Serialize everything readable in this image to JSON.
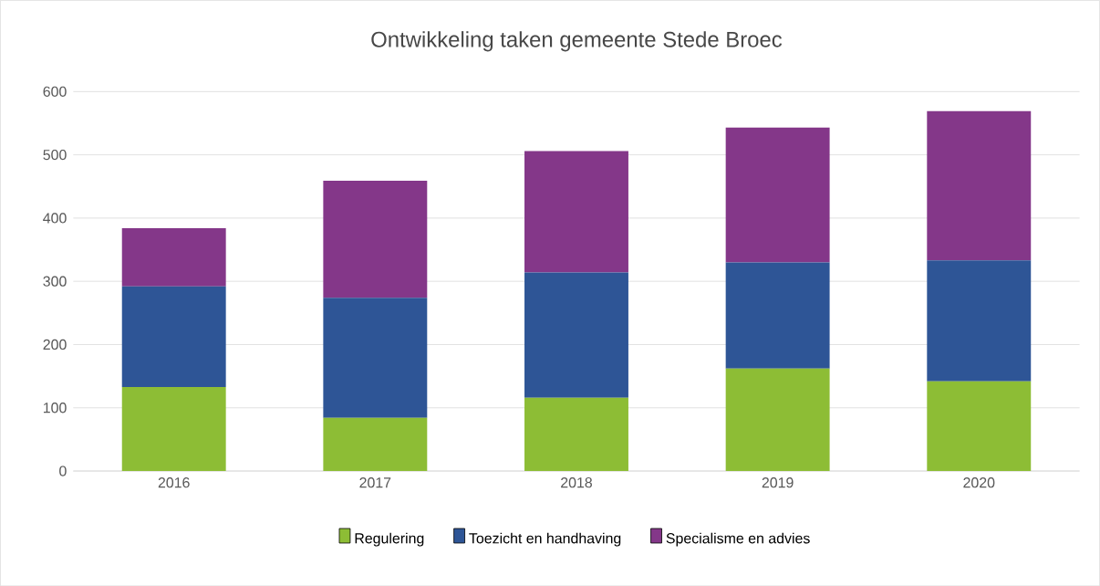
{
  "chart_data": {
    "type": "bar",
    "title": "Ontwikkeling taken gemeente Stede Broec",
    "stacked": true,
    "categories": [
      "2016",
      "2017",
      "2018",
      "2019",
      "2020"
    ],
    "series": [
      {
        "name": "Regulering",
        "color": "#8dbd35",
        "values": [
          133,
          84,
          116,
          162,
          142
        ]
      },
      {
        "name": "Toezicht en handhaving",
        "color": "#2e5596",
        "values": [
          159,
          190,
          198,
          168,
          191
        ]
      },
      {
        "name": "Specialisme en advies",
        "color": "#843789",
        "values": [
          92,
          185,
          192,
          213,
          236
        ]
      }
    ],
    "ylim": [
      0,
      600
    ],
    "yticks": [
      0,
      100,
      200,
      300,
      400,
      500,
      600
    ],
    "grid": "y",
    "legend": "bottom"
  }
}
